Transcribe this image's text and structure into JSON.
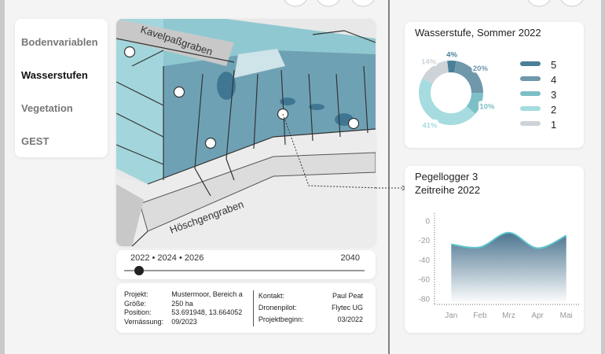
{
  "nav": [
    "Bodenvariablen",
    "Wasserstufen",
    "Vegetation",
    "GEST"
  ],
  "map": {
    "labels": [
      "Kavelpaßgraben",
      "Höschgengraben"
    ]
  },
  "timeline": {
    "labels": [
      "2022 • 2024 • 2026",
      "2040"
    ]
  },
  "info": {
    "left": [
      [
        "Projekt:",
        "Mustermoor, Bereich a"
      ],
      [
        "Größe:",
        "250 ha"
      ],
      [
        "Position:",
        "53.691948, 13.664052"
      ],
      [
        "Vernässung:",
        "09/2023"
      ]
    ],
    "right": [
      [
        "Kontakt:",
        "Paul Peat"
      ],
      [
        "Dronenpilot:",
        "Flytec UG"
      ],
      [
        "Projektbeginn:",
        "03/2022"
      ]
    ]
  },
  "chart_data": [
    {
      "type": "donut",
      "title": "Wasserstufe, Sommer 2022",
      "categories": [
        "5",
        "4",
        "3",
        "2",
        "1"
      ],
      "values": [
        4,
        20,
        10,
        41,
        14
      ],
      "value_labels": [
        "4%",
        "20%",
        "10%",
        "41%",
        "14%"
      ],
      "colors": [
        "#4a7f99",
        "#6f98ab",
        "#7dbfc6",
        "#a6dce0",
        "#cdd3d8"
      ]
    },
    {
      "type": "area",
      "title": "Pegellogger 3",
      "subtitle": "Zeitreihe 2022",
      "categories": [
        "Jan",
        "Feb",
        "Mrz",
        "Apr",
        "Mai"
      ],
      "series": [
        {
          "values": [
            -24,
            -27,
            -12,
            -28,
            -15
          ],
          "color": "#5ec4cc"
        }
      ],
      "ylim": [
        -85,
        8
      ],
      "yticks": [
        0,
        -20,
        -40,
        -60,
        -80
      ],
      "grid": false
    }
  ]
}
